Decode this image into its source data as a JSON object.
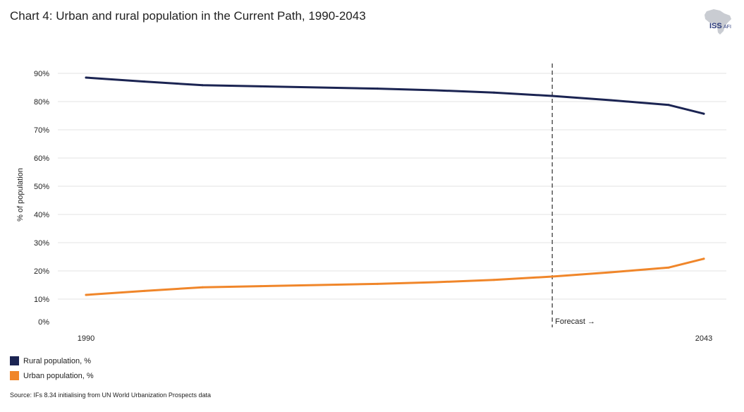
{
  "title": "Chart 4: Urban and rural population in the Current Path, 1990-2043",
  "logo": {
    "name": "ISS",
    "sub": "AFI"
  },
  "chart_data": {
    "type": "line",
    "title": "Chart 4: Urban and rural population in the Current Path, 1990-2043",
    "xlabel": "",
    "ylabel": "% of population",
    "xlim": [
      1990,
      2043
    ],
    "ylim": [
      0,
      90
    ],
    "x_tick_labels": [
      "1990",
      "2043"
    ],
    "y_ticks": [
      0,
      10,
      20,
      30,
      40,
      50,
      60,
      70,
      80,
      90
    ],
    "y_tick_labels": [
      "0%",
      "10%",
      "20%",
      "30%",
      "40%",
      "50%",
      "60%",
      "70%",
      "80%",
      "90%"
    ],
    "grid": true,
    "forecast_year": 2030,
    "forecast_label": "Forecast →",
    "series": [
      {
        "name": "Rural population, %",
        "color": "#1b2452",
        "x": [
          1990,
          1995,
          2000,
          2005,
          2010,
          2015,
          2020,
          2025,
          2030,
          2035,
          2040,
          2043
        ],
        "values": [
          88.5,
          87.1,
          85.8,
          85.4,
          85.0,
          84.6,
          84.0,
          83.2,
          82.0,
          80.5,
          78.8,
          75.7
        ]
      },
      {
        "name": "Urban population, %",
        "color": "#f0862a",
        "x": [
          1990,
          1995,
          2000,
          2005,
          2010,
          2015,
          2020,
          2025,
          2030,
          2035,
          2040,
          2043
        ],
        "values": [
          11.5,
          12.9,
          14.2,
          14.6,
          15.0,
          15.4,
          16.0,
          16.8,
          18.0,
          19.5,
          21.2,
          24.3
        ]
      }
    ]
  },
  "legend": [
    {
      "label": "Rural population, %",
      "color": "#1b2452"
    },
    {
      "label": "Urban population, %",
      "color": "#f0862a"
    }
  ],
  "source": "Source: IFs 8.34 initialising from UN World Urbanization Prospects data"
}
